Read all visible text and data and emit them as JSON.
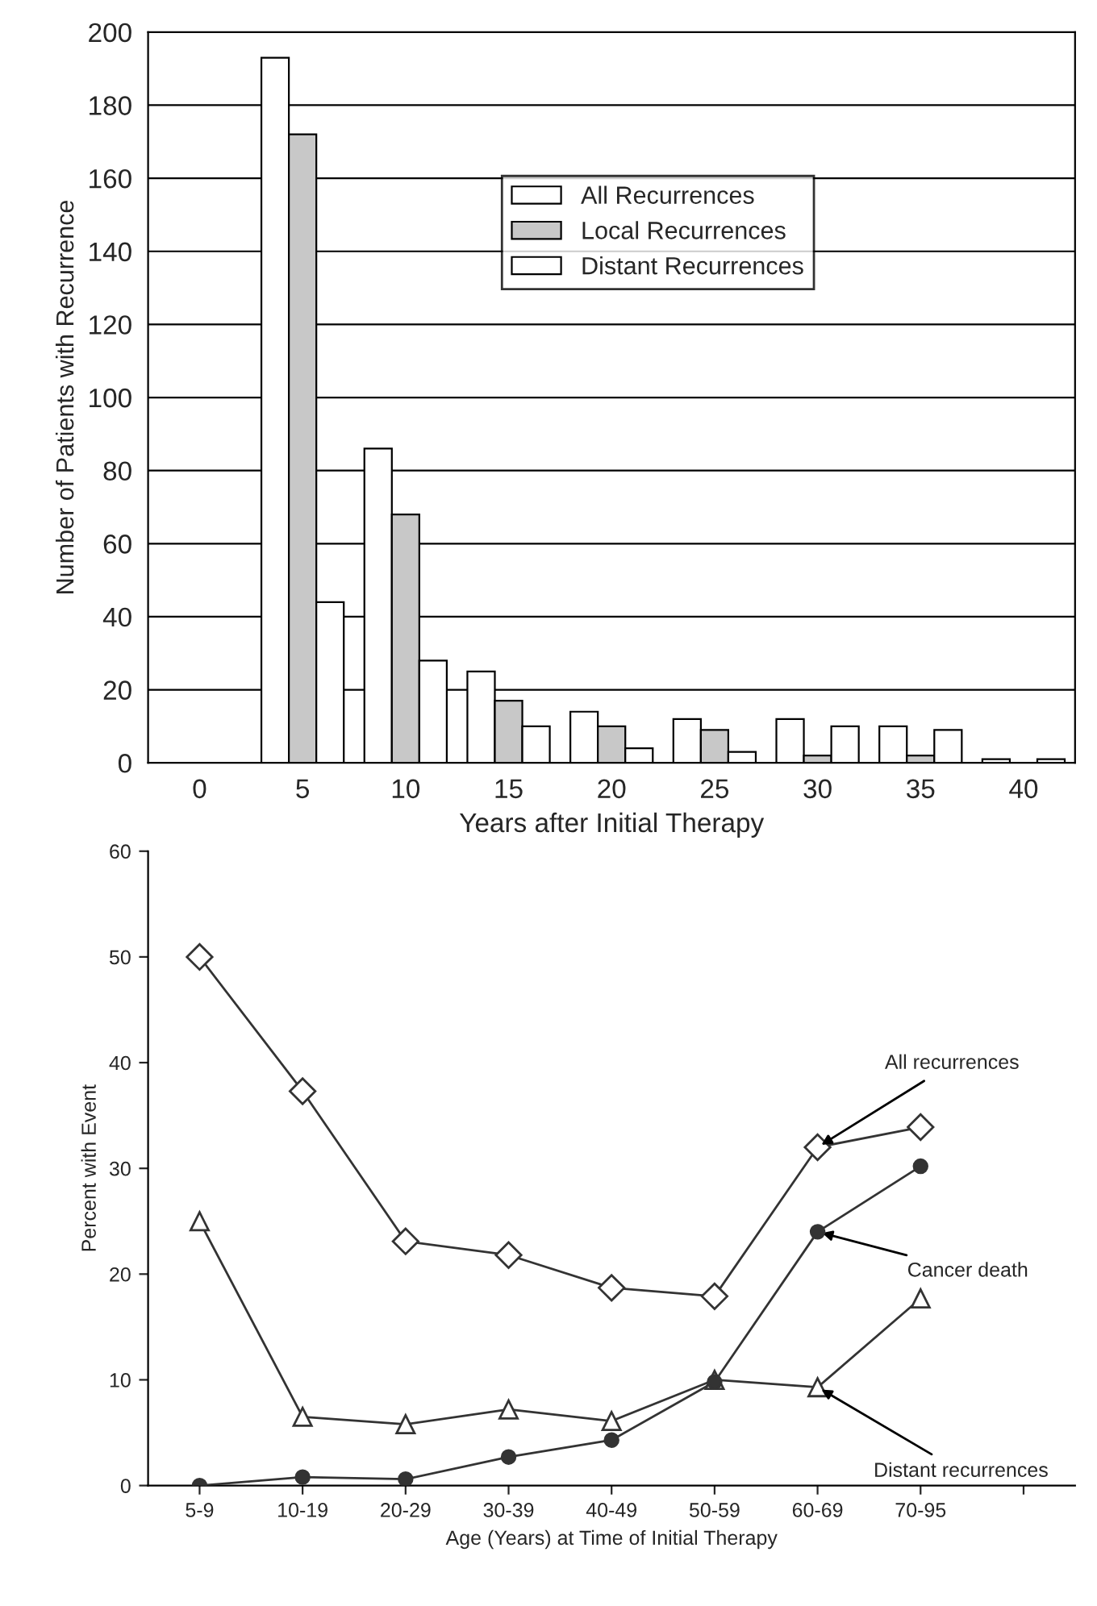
{
  "chart_data": [
    {
      "type": "bar",
      "xlabel": "Years after Initial Therapy",
      "ylabel": "Number of Patients with Recurrence",
      "categories": [
        "0",
        "5",
        "10",
        "15",
        "20",
        "25",
        "30",
        "35",
        "40"
      ],
      "series": [
        {
          "name": "All Recurrences",
          "color": "#ffffff",
          "values": [
            0,
            193,
            86,
            25,
            14,
            12,
            12,
            10,
            1
          ]
        },
        {
          "name": "Local Recurrences",
          "color": "#c8c8c8",
          "values": [
            0,
            172,
            68,
            17,
            10,
            9,
            2,
            2,
            0
          ]
        },
        {
          "name": "Distant Recurrences",
          "color": "#ffffff",
          "values": [
            0,
            44,
            28,
            10,
            4,
            3,
            10,
            9,
            1
          ]
        }
      ],
      "ylim": [
        0,
        200
      ],
      "yticks": [
        0,
        20,
        40,
        60,
        80,
        100,
        120,
        140,
        160,
        180,
        200
      ],
      "grid": "y",
      "legend": "top"
    },
    {
      "type": "line",
      "xlabel": "Age (Years) at Time of Initial Therapy",
      "ylabel": "Percent with Event",
      "categories": [
        "5-9",
        "10-19",
        "20-29",
        "30-39",
        "40-49",
        "50-59",
        "60-69",
        "70-95",
        null
      ],
      "series": [
        {
          "name": "All recurrences",
          "color": "#333333",
          "marker": "diamond",
          "values": [
            50,
            37.3,
            23.1,
            21.8,
            18.7,
            17.9,
            32,
            33.9,
            null
          ]
        },
        {
          "name": "Cancer death",
          "color": "#333333",
          "marker": "circle",
          "values": [
            0,
            0.8,
            0.6,
            2.7,
            4.3,
            9.8,
            24,
            30.2,
            null
          ]
        },
        {
          "name": "Distant recurrences",
          "color": "#333333",
          "marker": "triangle",
          "values": [
            25,
            6.5,
            5.8,
            7.2,
            6.1,
            10,
            9.3,
            17.7,
            null
          ]
        }
      ],
      "ylim": [
        0,
        60
      ],
      "yticks": [
        0,
        10,
        20,
        30,
        40,
        50,
        60
      ],
      "grid": false
    }
  ]
}
